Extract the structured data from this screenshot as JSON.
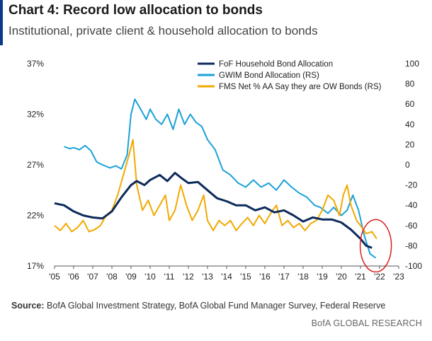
{
  "header": {
    "title": "Chart 4: Record low allocation to bonds",
    "subtitle": "Institutional, private client & household allocation to bonds"
  },
  "footer": {
    "source_label": "Source:",
    "source_text": "BofA Global Investment Strategy, BofA Global Fund Manager Survey, Federal Reserve",
    "credit": "BofA GLOBAL RESEARCH"
  },
  "colors": {
    "household": "#0d2a5c",
    "gwim": "#1ba1d8",
    "fms": "#f2a900",
    "highlight_circle": "#d62020",
    "accent": "#0b3a8c"
  },
  "chart_data": {
    "type": "line",
    "x_ticks": [
      "'05",
      "'06",
      "'07",
      "'08",
      "'09",
      "'10",
      "'11",
      "'12",
      "'13",
      "'14",
      "'15",
      "'16",
      "'17",
      "'18",
      "'19",
      "'20",
      "'21",
      "'22",
      "'23"
    ],
    "x_range": [
      2005,
      2023
    ],
    "y_left": {
      "ticks": [
        "17%",
        "22%",
        "27%",
        "32%",
        "37%"
      ],
      "range": [
        17,
        37
      ]
    },
    "y_right": {
      "ticks": [
        "-100",
        "-80",
        "-60",
        "-40",
        "-20",
        "0",
        "20",
        "40",
        "60",
        "80",
        "100"
      ],
      "range": [
        -100,
        100
      ]
    },
    "legend_position": "top-right",
    "annotation": "red circle around late-2021 values",
    "series": [
      {
        "name": "FoF Household Bond Allocation",
        "axis": "left",
        "points": [
          [
            2005.0,
            23.2
          ],
          [
            2005.5,
            23.0
          ],
          [
            2006.0,
            22.4
          ],
          [
            2006.5,
            22.0
          ],
          [
            2007.0,
            21.8
          ],
          [
            2007.5,
            21.7
          ],
          [
            2008.0,
            22.4
          ],
          [
            2008.5,
            23.8
          ],
          [
            2009.0,
            25.0
          ],
          [
            2009.3,
            25.4
          ],
          [
            2009.7,
            25.0
          ],
          [
            2010.0,
            25.5
          ],
          [
            2010.5,
            26.0
          ],
          [
            2010.9,
            25.4
          ],
          [
            2011.3,
            26.2
          ],
          [
            2011.7,
            25.6
          ],
          [
            2012.0,
            25.2
          ],
          [
            2012.5,
            25.3
          ],
          [
            2013.0,
            24.5
          ],
          [
            2013.5,
            23.7
          ],
          [
            2014.0,
            23.4
          ],
          [
            2014.5,
            23.0
          ],
          [
            2015.0,
            23.0
          ],
          [
            2015.5,
            22.5
          ],
          [
            2016.0,
            22.8
          ],
          [
            2016.5,
            22.3
          ],
          [
            2017.0,
            22.5
          ],
          [
            2017.5,
            22.0
          ],
          [
            2018.0,
            21.4
          ],
          [
            2018.5,
            21.8
          ],
          [
            2019.0,
            21.6
          ],
          [
            2019.5,
            21.6
          ],
          [
            2020.0,
            21.3
          ],
          [
            2020.5,
            20.6
          ],
          [
            2021.0,
            19.7
          ],
          [
            2021.3,
            19.0
          ],
          [
            2021.6,
            18.8
          ]
        ]
      },
      {
        "name": "GWIM Bond Allocation (RS)",
        "axis": "right",
        "points": [
          [
            2005.5,
            18
          ],
          [
            2005.8,
            16
          ],
          [
            2006.0,
            17
          ],
          [
            2006.3,
            15
          ],
          [
            2006.6,
            19
          ],
          [
            2006.9,
            14
          ],
          [
            2007.2,
            3
          ],
          [
            2007.5,
            0
          ],
          [
            2007.9,
            -3
          ],
          [
            2008.2,
            -1
          ],
          [
            2008.5,
            -4
          ],
          [
            2008.8,
            10
          ],
          [
            2009.0,
            50
          ],
          [
            2009.2,
            65
          ],
          [
            2009.5,
            55
          ],
          [
            2009.8,
            45
          ],
          [
            2010.0,
            55
          ],
          [
            2010.3,
            45
          ],
          [
            2010.6,
            40
          ],
          [
            2010.9,
            50
          ],
          [
            2011.2,
            35
          ],
          [
            2011.5,
            55
          ],
          [
            2011.8,
            40
          ],
          [
            2012.1,
            50
          ],
          [
            2012.4,
            42
          ],
          [
            2012.7,
            38
          ],
          [
            2013.0,
            25
          ],
          [
            2013.4,
            15
          ],
          [
            2013.8,
            -5
          ],
          [
            2014.2,
            -10
          ],
          [
            2014.6,
            -18
          ],
          [
            2015.0,
            -22
          ],
          [
            2015.4,
            -15
          ],
          [
            2015.8,
            -22
          ],
          [
            2016.2,
            -18
          ],
          [
            2016.6,
            -25
          ],
          [
            2017.0,
            -15
          ],
          [
            2017.4,
            -22
          ],
          [
            2017.8,
            -28
          ],
          [
            2018.2,
            -32
          ],
          [
            2018.6,
            -40
          ],
          [
            2018.9,
            -42
          ],
          [
            2019.3,
            -48
          ],
          [
            2019.6,
            -42
          ],
          [
            2020.0,
            -50
          ],
          [
            2020.3,
            -45
          ],
          [
            2020.6,
            -30
          ],
          [
            2020.9,
            -45
          ],
          [
            2021.2,
            -70
          ],
          [
            2021.5,
            -88
          ],
          [
            2021.8,
            -92
          ]
        ]
      },
      {
        "name": "FMS Net % AA Say they are OW Bonds (RS)",
        "axis": "right",
        "points": [
          [
            2005.0,
            -60
          ],
          [
            2005.3,
            -65
          ],
          [
            2005.6,
            -58
          ],
          [
            2005.9,
            -66
          ],
          [
            2006.2,
            -62
          ],
          [
            2006.5,
            -55
          ],
          [
            2006.8,
            -66
          ],
          [
            2007.1,
            -64
          ],
          [
            2007.4,
            -60
          ],
          [
            2007.7,
            -50
          ],
          [
            2008.0,
            -45
          ],
          [
            2008.3,
            -30
          ],
          [
            2008.6,
            -10
          ],
          [
            2008.9,
            10
          ],
          [
            2009.1,
            25
          ],
          [
            2009.3,
            -20
          ],
          [
            2009.6,
            -45
          ],
          [
            2009.9,
            -35
          ],
          [
            2010.2,
            -50
          ],
          [
            2010.5,
            -40
          ],
          [
            2010.8,
            -30
          ],
          [
            2011.0,
            -55
          ],
          [
            2011.3,
            -45
          ],
          [
            2011.6,
            -20
          ],
          [
            2011.9,
            -40
          ],
          [
            2012.2,
            -55
          ],
          [
            2012.5,
            -45
          ],
          [
            2012.8,
            -30
          ],
          [
            2013.0,
            -55
          ],
          [
            2013.3,
            -65
          ],
          [
            2013.6,
            -55
          ],
          [
            2013.9,
            -60
          ],
          [
            2014.2,
            -55
          ],
          [
            2014.5,
            -65
          ],
          [
            2014.8,
            -58
          ],
          [
            2015.1,
            -52
          ],
          [
            2015.4,
            -60
          ],
          [
            2015.7,
            -50
          ],
          [
            2016.0,
            -58
          ],
          [
            2016.3,
            -48
          ],
          [
            2016.6,
            -40
          ],
          [
            2016.9,
            -60
          ],
          [
            2017.2,
            -55
          ],
          [
            2017.5,
            -62
          ],
          [
            2017.8,
            -58
          ],
          [
            2018.1,
            -65
          ],
          [
            2018.4,
            -58
          ],
          [
            2018.7,
            -55
          ],
          [
            2019.0,
            -45
          ],
          [
            2019.3,
            -30
          ],
          [
            2019.6,
            -35
          ],
          [
            2019.9,
            -50
          ],
          [
            2020.1,
            -30
          ],
          [
            2020.3,
            -20
          ],
          [
            2020.5,
            -40
          ],
          [
            2020.8,
            -55
          ],
          [
            2021.0,
            -60
          ],
          [
            2021.3,
            -68
          ],
          [
            2021.6,
            -66
          ],
          [
            2021.85,
            -73
          ]
        ]
      }
    ]
  }
}
